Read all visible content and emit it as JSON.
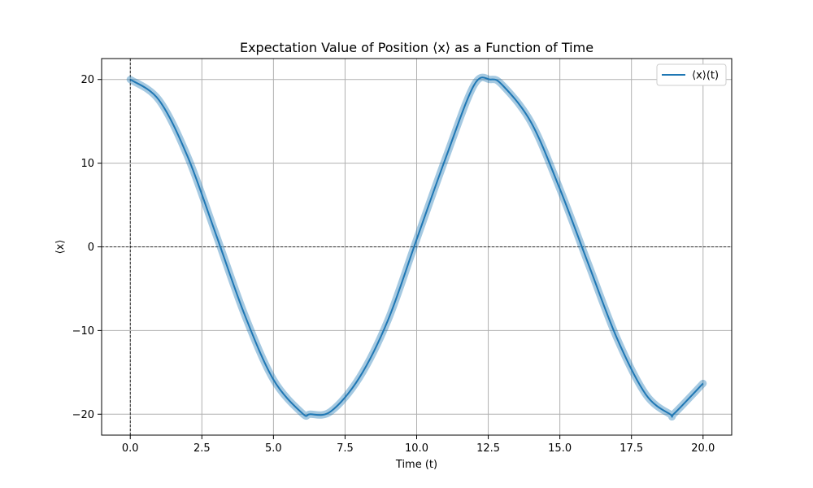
{
  "chart_data": {
    "type": "line",
    "title": "Expectation Value of Position ⟨x⟩ as a Function of Time",
    "xlabel": "Time (t)",
    "ylabel": "⟨x⟩",
    "xlim": [
      -1,
      21
    ],
    "ylim": [
      -22.5,
      22.5
    ],
    "xticks": [
      0,
      2.5,
      5,
      7.5,
      10,
      12.5,
      15,
      17.5,
      20
    ],
    "xtick_labels": [
      "0.0",
      "2.5",
      "5.0",
      "7.5",
      "10.0",
      "12.5",
      "15.0",
      "17.5",
      "20.0"
    ],
    "yticks": [
      -20,
      -10,
      0,
      10,
      20
    ],
    "ytick_labels": [
      "−20",
      "−10",
      "0",
      "10",
      "20"
    ],
    "grid": true,
    "legend_position": "top-right",
    "series": [
      {
        "name": "⟨x⟩(t)",
        "color": "#1f77b4",
        "band_color": "#1f77b4",
        "x": [
          0,
          1,
          2,
          3,
          4,
          5,
          6,
          6.28,
          7,
          8,
          9,
          10,
          11,
          12,
          12.57,
          13,
          14,
          15,
          16,
          17,
          18,
          18.85,
          19,
          20
        ],
        "y": [
          20,
          17.55,
          10.81,
          1.41,
          -8.17,
          -15.87,
          -19.87,
          -20,
          -19.67,
          -15.63,
          -8.75,
          0.89,
          10.49,
          19.31,
          20,
          19.31,
          14.85,
          6.92,
          -2.09,
          -10.97,
          -17.63,
          -20,
          -19.89,
          -16.32
        ]
      }
    ],
    "reference_lines": {
      "x_zero": true,
      "y_zero": true,
      "color": "#000000"
    }
  }
}
